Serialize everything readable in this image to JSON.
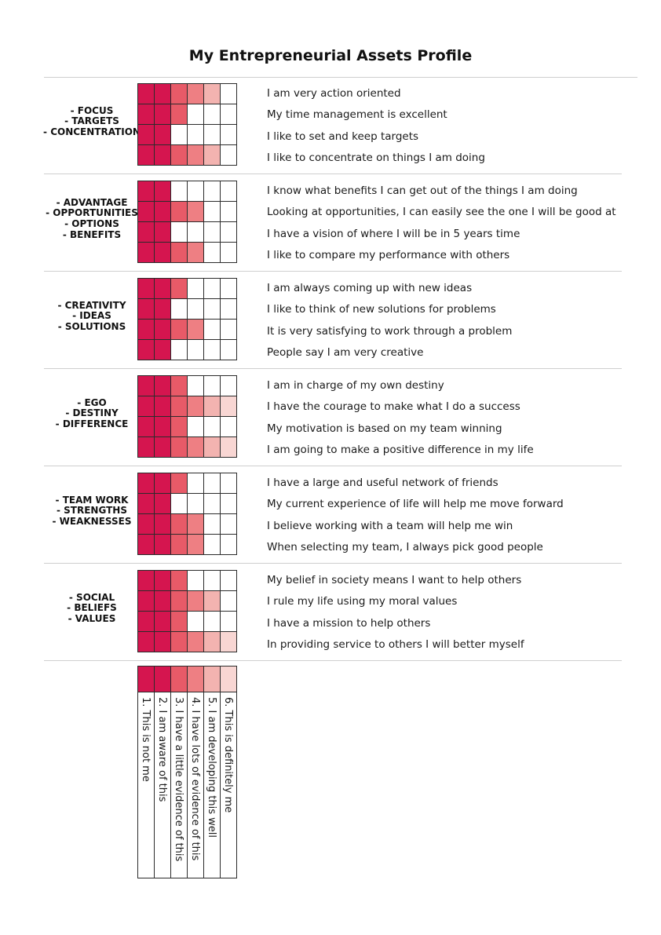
{
  "title": "My Entrepreneurial Assets Profile",
  "colors": {
    "1": "#d5154f",
    "2": "#d5154f",
    "3": "#e85a68",
    "4": "#ee7f83",
    "5": "#f3b3b0",
    "6": "#f8d6d3",
    "empty": "#ffffff",
    "rule": "#cfcfcf"
  },
  "sections": [
    {
      "labels": [
        "- FOCUS",
        "- TARGETS",
        "- CONCENTRATION"
      ],
      "statements": [
        "I am very action oriented",
        "My time management is excellent",
        "I like to set and keep targets",
        "I like to concentrate on things I am doing"
      ],
      "levels": [
        5,
        3,
        2,
        5
      ]
    },
    {
      "labels": [
        "- ADVANTAGE",
        "- OPPORTUNITIES",
        "- OPTIONS",
        "- BENEFITS"
      ],
      "statements": [
        "I know what benefits I can get out of the things I am doing",
        "Looking at opportunities, I can easily see the one I will be good at",
        "I have a vision of where I will be in 5 years time",
        "I like to compare my performance with others"
      ],
      "levels": [
        2,
        4,
        2,
        4
      ]
    },
    {
      "labels": [
        "- CREATIVITY",
        "- IDEAS",
        "- SOLUTIONS"
      ],
      "statements": [
        "I am always coming up with new ideas",
        "I like to think of new solutions for problems",
        "It is very satisfying to work through a problem",
        "People say I am very creative"
      ],
      "levels": [
        3,
        2,
        4,
        2
      ]
    },
    {
      "labels": [
        "- EGO",
        "- DESTINY",
        "- DIFFERENCE"
      ],
      "statements": [
        "I am in charge of my own destiny",
        "I have the courage to make what I do a success",
        "My motivation is based on my team winning",
        "I am going to make a positive difference in my life"
      ],
      "levels": [
        3,
        6,
        3,
        6
      ]
    },
    {
      "labels": [
        "- TEAM WORK",
        "- STRENGTHS",
        "- WEAKNESSES"
      ],
      "statements": [
        "I have a large and useful network of friends",
        "My current experience of life will help me move forward",
        "I believe working with a team will help me win",
        "When selecting my team, I always pick good people"
      ],
      "levels": [
        3,
        2,
        4,
        4
      ]
    },
    {
      "labels": [
        "- SOCIAL",
        "- BELIEFS",
        "- VALUES"
      ],
      "statements": [
        "My belief in society means I want to help others",
        "I rule my life using my moral values",
        "I have a mission to help others",
        "In providing service to others I will better myself"
      ],
      "levels": [
        3,
        5,
        3,
        6
      ]
    }
  ],
  "legend": [
    "1.  This is not me",
    "2.  I am aware of this",
    "3.  I have a little evidence of this",
    "4.  I have lots of evidence of this",
    "5.  I am developing this well",
    "6.  This is definitely me"
  ]
}
